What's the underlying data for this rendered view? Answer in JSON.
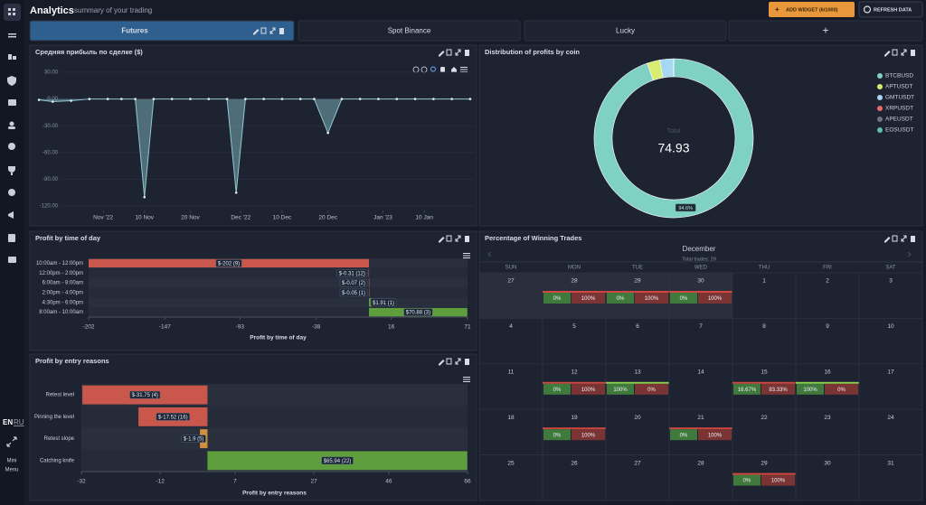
{
  "header": {
    "title": "Analytics",
    "subtitle": "summary of your trading",
    "buttons": [
      "ADD WIDGET (6/1000)",
      "REFRESH DATA"
    ]
  },
  "tabs": [
    "Futures",
    "Spot Binance",
    "Lucky",
    "+"
  ],
  "sidebar": {
    "languages": [
      "EN",
      "RU"
    ],
    "mini_menu": [
      "Mini",
      "Menu"
    ]
  },
  "chart_data": [
    {
      "type": "area",
      "title": "Средняя прибыль по сделке ($)",
      "color": "#8fc9d0",
      "x": [
        "2022-10-18",
        "2022-10-21",
        "2022-10-25",
        "2022-10-29",
        "2022-11-02",
        "2022-11-05",
        "2022-11-08",
        "2022-11-10",
        "2022-11-12",
        "2022-11-16",
        "2022-11-20",
        "2022-11-24",
        "2022-11-28",
        "2022-11-30",
        "2022-12-02",
        "2022-12-06",
        "2022-12-10",
        "2022-12-14",
        "2022-12-17",
        "2022-12-20",
        "2022-12-23",
        "2022-12-27",
        "2022-12-31",
        "2023-01-04",
        "2023-01-08",
        "2023-01-12",
        "2023-01-16",
        "2023-01-20"
      ],
      "values": [
        -1,
        -3,
        -2,
        0,
        0,
        0,
        0,
        -110,
        0,
        0,
        0,
        0,
        0,
        -105,
        0,
        0,
        0,
        0,
        0,
        -38,
        0,
        0,
        0,
        0,
        0,
        0,
        0,
        0
      ],
      "xlim": [
        "2022-10-17",
        "2023-01-21"
      ],
      "xticks": [
        {
          "value": "2022-11-01",
          "label": "Nov '22"
        },
        {
          "value": "2022-11-10",
          "label": "10 Nov"
        },
        {
          "value": "2022-11-20",
          "label": "20 Nov"
        },
        {
          "value": "2022-12-01",
          "label": "Dec '22"
        },
        {
          "value": "2022-12-10",
          "label": "10 Dec"
        },
        {
          "value": "2022-12-20",
          "label": "20 Dec"
        },
        {
          "value": "2023-01-01",
          "label": "Jan '23"
        },
        {
          "value": "2023-01-10",
          "label": "10 Jan"
        }
      ],
      "ylim": [
        -125,
        35
      ],
      "yticks": [
        {
          "value": 30,
          "label": "30.00"
        },
        {
          "value": 0,
          "label": "0.00"
        },
        {
          "value": -30,
          "label": "-30.00"
        },
        {
          "value": -60,
          "label": "-60.00"
        },
        {
          "value": -90,
          "label": "-90.00"
        },
        {
          "value": -120,
          "label": "-120.00"
        }
      ],
      "grid": true
    },
    {
      "type": "pie",
      "title": "Distribution of profits by coin",
      "categories": [
        "BTCBUSD",
        "APTUSDT",
        "GMTUSDT",
        "XRPUSDT",
        "APEUSDT",
        "EOSUSDT"
      ],
      "values": [
        94.6,
        2.6,
        2.8,
        0,
        0,
        0
      ],
      "value_labels": [
        "94.6%",
        null,
        null,
        null,
        null,
        null
      ],
      "colors": [
        "#7fd1c4",
        "#d9ec72",
        "#a7d8f2",
        "#e56b6b",
        "#6f7480",
        "#5fbfae"
      ],
      "total_label": "Total",
      "total": 74.93,
      "legend": "right"
    },
    {
      "type": "barh",
      "title": "Profit by time of day",
      "xlabel": "Profit by time of day",
      "categories": [
        "10:00am - 12:00pm",
        "12:00pm - 2:00pm",
        "6:00am - 8:00am",
        "2:00pm - 4:00pm",
        "4:30pm - 6:00pm",
        "8:00am - 10:00am"
      ],
      "values": [
        -202,
        -0.31,
        -0.07,
        -0.05,
        1.91,
        70.88
      ],
      "value_labels": [
        "$-202 (9)",
        "$-0.31 (12)",
        "$-0.07 (2)",
        "$-0.05 (1)",
        "$1.91 (1)",
        "$70.88 (3)"
      ],
      "colors": [
        "#c9574c",
        "#c9574c",
        "#c9574c",
        "#c9574c",
        "#5f9e3d",
        "#5f9e3d"
      ],
      "xlim": [
        -202,
        71
      ],
      "xticks": [
        -202,
        -147,
        -93,
        -38,
        16,
        71
      ]
    },
    {
      "type": "barh",
      "title": "Profit by entry reasons",
      "xlabel": "Profit by entry reasons",
      "categories": [
        "Retest level",
        "Pinning the level",
        "Retest slope",
        "Catching knife"
      ],
      "values": [
        -31.75,
        -17.52,
        -1.9,
        65.94
      ],
      "value_labels": [
        "$-31.75 (4)",
        "$-17.52 (16)",
        "$-1.9 (5)",
        "$65.94 (22)"
      ],
      "colors": [
        "#c9574c",
        "#c9574c",
        "#d3903c",
        "#5f9e3d"
      ],
      "xlim": [
        -32,
        66
      ],
      "xticks": [
        -32,
        -12,
        7,
        27,
        46,
        66
      ]
    }
  ],
  "calendar": {
    "title": "Percentage of Winning Trades",
    "month": "December",
    "total": "Total trades: 29",
    "weekdays": [
      "SUN",
      "MON",
      "TUE",
      "WED",
      "THU",
      "FRI",
      "SAT"
    ],
    "days": [
      {
        "day": 27
      },
      {
        "day": 28,
        "win": "0%",
        "loss": "100%"
      },
      {
        "day": 29,
        "win": "0%",
        "loss": "100%"
      },
      {
        "day": 30,
        "win": "0%",
        "loss": "100%"
      },
      {
        "day": 1
      },
      {
        "day": 2
      },
      {
        "day": 3
      },
      {
        "day": 4
      },
      {
        "day": 5
      },
      {
        "day": 6
      },
      {
        "day": 7
      },
      {
        "day": 8
      },
      {
        "day": 9
      },
      {
        "day": 10
      },
      {
        "day": 11
      },
      {
        "day": 12,
        "win": "0%",
        "loss": "100%"
      },
      {
        "day": 13,
        "win": "100%",
        "loss": "0%"
      },
      {
        "day": 14
      },
      {
        "day": 15,
        "win": "16.67%",
        "loss": "83.33%"
      },
      {
        "day": 16,
        "win": "100%",
        "loss": "0%"
      },
      {
        "day": 17
      },
      {
        "day": 18
      },
      {
        "day": 19,
        "win": "0%",
        "loss": "100%"
      },
      {
        "day": 20
      },
      {
        "day": 21,
        "win": "0%",
        "loss": "100%"
      },
      {
        "day": 22
      },
      {
        "day": 23
      },
      {
        "day": 24
      },
      {
        "day": 25
      },
      {
        "day": 26
      },
      {
        "day": 27
      },
      {
        "day": 28
      },
      {
        "day": 29,
        "win": "0%",
        "loss": "100%"
      },
      {
        "day": 30
      },
      {
        "day": 31
      }
    ]
  }
}
